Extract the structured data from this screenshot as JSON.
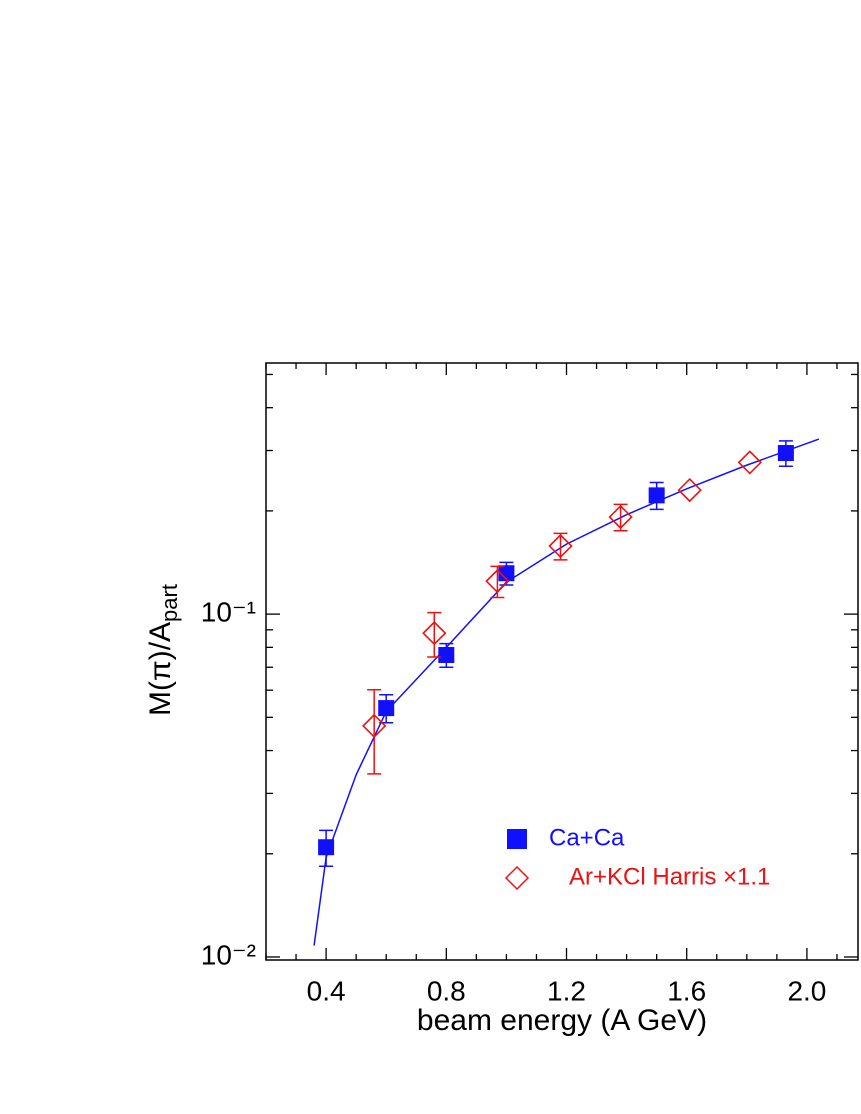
{
  "chart_data": {
    "type": "scatter",
    "x_label": "beam energy (A GeV)",
    "y_label": "M(π)/A",
    "y_label_sub": "part",
    "xlim": [
      0.2,
      2.17
    ],
    "ylim": [
      0.0098,
      0.54
    ],
    "ylog": true,
    "xticks": [
      0.4,
      0.8,
      1.2,
      1.6,
      {
        "value": 2,
        "label": "2.0"
      }
    ],
    "xminorticks": [
      0.2,
      0.3,
      0.5,
      0.6,
      0.7,
      0.9,
      1.0,
      1.1,
      1.3,
      1.4,
      1.5,
      1.7,
      1.8,
      1.9,
      2.1
    ],
    "yticks": [
      {
        "value": 0.01,
        "label": "10⁻²"
      },
      {
        "value": 0.1,
        "label": "10⁻¹"
      }
    ],
    "yminorticks": [
      0.02,
      0.03,
      0.04,
      0.05,
      0.06,
      0.07,
      0.08,
      0.09,
      0.2,
      0.3,
      0.4,
      0.5
    ],
    "series": [
      {
        "name": "Ca+Ca",
        "color": "#1010ff",
        "marker": "square",
        "x": [
          0.4,
          0.6,
          0.8,
          1.0,
          1.5,
          1.93
        ],
        "values": [
          0.0209,
          0.0532,
          0.076,
          0.1316,
          0.222,
          0.295
        ],
        "errors": [
          0.0025,
          0.005,
          0.006,
          0.01,
          0.02,
          0.025
        ]
      },
      {
        "name": "Ar+KCl Harris ×1.1",
        "color": "#ee1111",
        "marker": "diamond",
        "x": [
          0.56,
          0.76,
          0.97,
          1.18,
          1.38,
          1.61,
          1.81
        ],
        "values": [
          0.0472,
          0.088,
          0.1248,
          0.158,
          0.192,
          0.23,
          0.277
        ],
        "errors": [
          0.013,
          0.013,
          0.013,
          0.014,
          0.017,
          null,
          null
        ]
      }
    ],
    "fit": {
      "color": "#1010ff",
      "x": [
        0.36,
        0.4,
        0.5,
        0.6,
        0.8,
        1.0,
        1.2,
        1.4,
        1.6,
        1.8,
        2.04
      ],
      "values": [
        0.0108,
        0.0195,
        0.034,
        0.052,
        0.08,
        0.124,
        0.16,
        0.195,
        0.232,
        0.272,
        0.324
      ]
    }
  }
}
